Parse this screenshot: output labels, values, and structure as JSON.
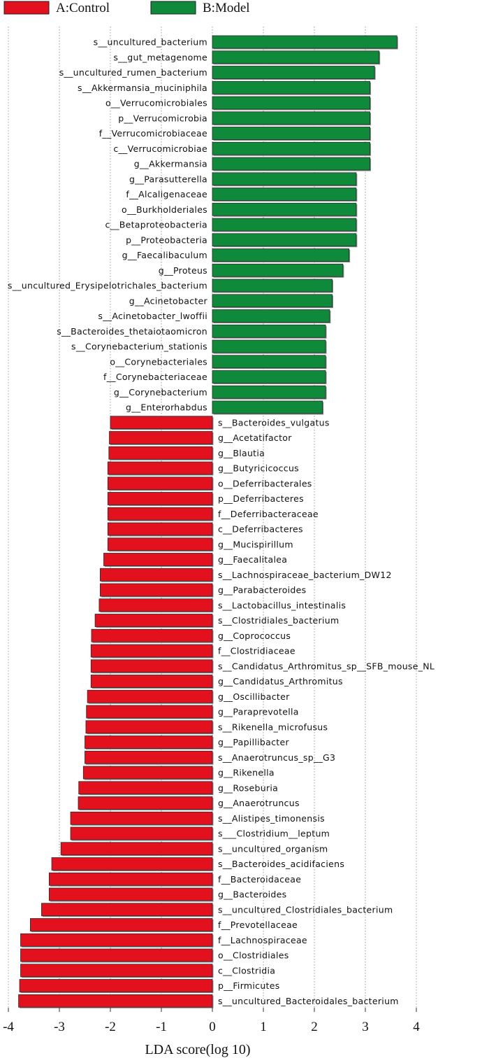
{
  "chart_data": {
    "type": "bar",
    "orientation": "horizontal",
    "xlabel": "LDA score(log 10)",
    "xlim": [
      -4,
      4.2
    ],
    "xticks": [
      -4,
      -3,
      -2,
      -1,
      0,
      1,
      2,
      3,
      4
    ],
    "grid": "vertical dotted lines at ticks",
    "legend_position": "top-left",
    "legend": [
      {
        "name": "A:Control",
        "color": "#e3101e"
      },
      {
        "name": "B:Model",
        "color": "#0f8a3a"
      }
    ],
    "series": [
      {
        "name": "B:Model",
        "color": "#0f8a3a",
        "categories": [
          "s__uncultured_bacterium",
          "s__gut_metagenome",
          "s__uncultured_rumen_bacterium",
          "s__Akkermansia_muciniphila",
          "o__Verrucomicrobiales",
          "p__Verrucomicrobia",
          "f__Verrucomicrobiaceae",
          "c__Verrucomicrobiae",
          "g__Akkermansia",
          "g__Parasutterella",
          "f__Alcaligenaceae",
          "o__Burkholderiales",
          "c__Betaproteobacteria",
          "p__Proteobacteria",
          "g__Faecalibaculum",
          "g__Proteus",
          "s__uncultured_Erysipelotrichales_bacterium",
          "g__Acinetobacter",
          "s__Acinetobacter_lwoffii",
          "s__Bacteroides_thetaiotaomicron",
          "s__Corynebacterium_stationis",
          "o__Corynebacteriales",
          "f__Corynebacteriaceae",
          "g__Corynebacterium",
          "g__Enterorhabdus"
        ],
        "values": [
          3.62,
          3.27,
          3.18,
          3.09,
          3.09,
          3.09,
          3.09,
          3.09,
          3.09,
          2.82,
          2.82,
          2.82,
          2.82,
          2.82,
          2.68,
          2.56,
          2.35,
          2.35,
          2.3,
          2.22,
          2.22,
          2.22,
          2.22,
          2.22,
          2.16
        ]
      },
      {
        "name": "A:Control",
        "color": "#e3101e",
        "categories": [
          "s__Bacteroides_vulgatus",
          "g__Acetatifactor",
          "g__Blautia",
          "g__Butyricicoccus",
          "o__Deferribacterales",
          "p__Deferribacteres",
          "f__Deferribacteraceae",
          "c__Deferribacteres",
          "g__Mucispirillum",
          "g__Faecalitalea",
          "s__Lachnospiraceae_bacterium_DW12",
          "g__Parabacteroides",
          "s__Lactobacillus_intestinalis",
          "s__Clostridiales_bacterium",
          "g__Coprococcus",
          "f__Clostridiaceae",
          "s__Candidatus_Arthromitus_sp__SFB_mouse_NL",
          "g__Candidatus_Arthromitus",
          "g__Oscillibacter",
          "g__Paraprevotella",
          "s__Rikenella_microfusus",
          "g__Papillibacter",
          "s__Anaerotruncus_sp__G3",
          "g__Rikenella",
          "g__Roseburia",
          "g__Anaerotruncus",
          "s__Alistipes_timonensis",
          "s___Clostridium__leptum",
          "s__uncultured_organism",
          "s__Bacteroides_acidifaciens",
          "f__Bacteroidaceae",
          "g__Bacteroides",
          "s__uncultured_Clostridiales_bacterium",
          "f__Prevotellaceae",
          "f__Lachnospiraceae",
          "o__Clostridiales",
          "c__Clostridia",
          "p__Firmicutes",
          "s__uncultured_Bacteroidales_bacterium"
        ],
        "values": [
          -2.0,
          -2.02,
          -2.03,
          -2.05,
          -2.05,
          -2.05,
          -2.05,
          -2.05,
          -2.05,
          -2.13,
          -2.2,
          -2.2,
          -2.22,
          -2.3,
          -2.37,
          -2.38,
          -2.38,
          -2.38,
          -2.45,
          -2.47,
          -2.48,
          -2.5,
          -2.5,
          -2.53,
          -2.62,
          -2.63,
          -2.78,
          -2.78,
          -2.97,
          -3.15,
          -3.2,
          -3.2,
          -3.35,
          -3.57,
          -3.76,
          -3.76,
          -3.76,
          -3.78,
          -3.8
        ]
      }
    ]
  }
}
